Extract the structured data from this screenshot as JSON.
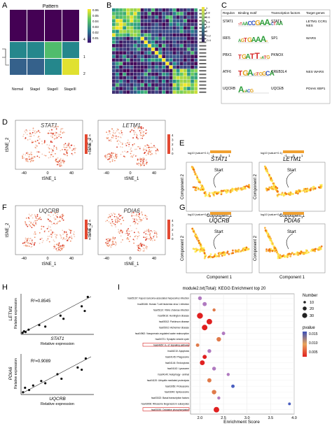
{
  "panels": {
    "A": {
      "letter": "A",
      "title": "Pattern",
      "columns": [
        "Normal",
        "StageI",
        "StageII",
        "StageIII"
      ],
      "row_labels": [
        "4",
        "1",
        "2"
      ],
      "colorbar_ticks": [
        "0.06",
        "0.05",
        "0.04",
        "0.03",
        "0.02",
        "0.01"
      ],
      "values": [
        [
          0.0,
          0.0,
          0.0,
          0.0
        ],
        [
          0.03,
          0.03,
          0.045,
          0.03
        ],
        [
          0.02,
          0.02,
          0.03,
          0.062
        ]
      ]
    },
    "B": {
      "letter": "B",
      "colorbar_ticks": [
        "1",
        "0.8",
        "0.6",
        "0.4",
        "0.2",
        "0",
        "-0.2",
        "-0.4"
      ]
    },
    "C": {
      "letter": "C",
      "headers": [
        "Regulon",
        "Binding motif",
        "Transcription factors",
        "Target genes"
      ],
      "rows": [
        {
          "regulon": "STAT1",
          "motif": "TTAACCGAAACTAA",
          "tf": "STAT1",
          "targets": "LETM1 CCR1\nNES"
        },
        {
          "regulon": "IRF5",
          "motif": "AGTGAAAG",
          "tf": "SP1",
          "targets": "WARS"
        },
        {
          "regulon": "PBX1",
          "motif": "TGATTGATG",
          "tf": "PKNOX",
          "targets": ""
        },
        {
          "regulon": "ATF6",
          "motif": "TGACGTGGCA",
          "tf": "CREB3L4",
          "targets": "NES WARS"
        },
        {
          "regulon": "UQCRB",
          "motif": "AGACG",
          "tf": "UQCEB",
          "targets": "PDIA6 XBP1"
        }
      ]
    },
    "D": {
      "letter": "D",
      "gene1": "STAT1",
      "gene2": "LETM1",
      "xlabel": "tSNE_1",
      "ylabel": "tSNE_2",
      "ticks": [
        "-40",
        "0",
        "40"
      ],
      "bar_ticks": [
        "4",
        "3",
        "2",
        "1",
        "0"
      ]
    },
    "E": {
      "letter": "E",
      "gene1": "STAT1",
      "gene2": "LETM1",
      "xlabel": "Component 1",
      "ylabel": "Component 2",
      "legend": "log10 (value+0.1)",
      "legend_ticks": [
        "-1",
        "0",
        "1"
      ],
      "start": "Start"
    },
    "F": {
      "letter": "F",
      "gene1": "UQCRB",
      "gene2": "PDIA6",
      "xlabel": "tSNE_1",
      "ylabel": "tSNE_2",
      "ticks": [
        "-40",
        "0",
        "40"
      ],
      "bar_ticks": [
        "4",
        "3",
        "2",
        "1",
        "0"
      ]
    },
    "G": {
      "letter": "G",
      "gene1": "UQCRB",
      "gene2": "PDIA6",
      "xlabel": "Component 1",
      "ylabel": "Component 2",
      "legend": "log10 (value+0.1)",
      "legend_ticks": [
        "-1",
        "0",
        "1"
      ],
      "start": "Start"
    },
    "H": {
      "letter": "H",
      "top": {
        "ylabel": "LETM1",
        "ysub": "Relative expression",
        "xlabel": "STAT1",
        "xsub": "Relative expression",
        "r2": "R²=0.8545"
      },
      "bottom": {
        "ylabel": "PDIA6",
        "ysub": "Relative expression",
        "xlabel": "UQCRB",
        "xsub": "Relative expression",
        "r2": "R²=0.9089"
      }
    },
    "I": {
      "letter": "I",
      "title": "module2.txt(Total): KEGG Enrichment top 20",
      "xlabel": "Enrichment Score",
      "x_ticks": [
        "2.0",
        "2.5",
        "3.0",
        "3.5",
        "4.0"
      ],
      "size_legend_title": "Number",
      "size_legend": [
        "10",
        "20",
        "30"
      ],
      "color_legend_title": "pvalue",
      "color_legend": [
        "0.015",
        "0.010",
        "0.005"
      ]
    }
  },
  "chart_data": [
    {
      "type": "scatter",
      "title": "",
      "xlabel": "STAT1 Relative expression",
      "ylabel": "LETM1 Relative expression",
      "annotation": "R²=0.8545",
      "x": [
        0.5,
        1.0,
        1.5,
        2.5,
        6.0,
        8.0,
        13.0,
        14.0,
        20.0,
        21.0,
        22.0
      ],
      "y": [
        1.0,
        2.0,
        1.5,
        3.0,
        6.0,
        5.0,
        12.0,
        10.0,
        18.0,
        15.0,
        24.0
      ]
    },
    {
      "type": "scatter",
      "title": "",
      "xlabel": "UQCRB Relative expression",
      "ylabel": "PDIA6 Relative expression",
      "annotation": "R²=0.9089",
      "x": [
        0.5,
        1.0,
        2.0,
        3.0,
        5.0,
        6.0,
        9.0,
        10.0,
        14.0,
        15.0,
        16.0
      ],
      "y": [
        1.0,
        3.0,
        2.0,
        4.0,
        6.0,
        5.0,
        9.0,
        7.0,
        12.0,
        11.0,
        16.0
      ]
    },
    {
      "type": "scatter",
      "title": "module2.txt(Total): KEGG Enrichment top 20",
      "xlabel": "Enrichment Score",
      "xlim": [
        1.8,
        4.0
      ],
      "categories": [
        "hsa05167: Kaposi sarcoma-associated herpesvirus infection",
        "hsa05166: Human T-cell leukemia virus 1 infection",
        "hsa05110: Vibrio cholerae infection",
        "hsa05016: Huntington disease",
        "hsa05012: Parkinson disease",
        "hsa05010: Alzheimer disease",
        "hsa04962: Vasopressin-regulated water reabsorption",
        "hsa04721: Synaptic vesicle cycle",
        "hsa04657: IL-17 signaling pathway",
        "hsa04210: Apoptosis",
        "hsa04145: Phagosome",
        "hsa04144: Endocytosis",
        "hsa04142: Lysosome",
        "hsa04140: Autophagy - animal",
        "hsa04120: Ubiquitin mediated proteolysis",
        "hsa03050: Proteasome",
        "hsa03040: Spliceosome",
        "hsa03022: Basal transcription factors",
        "hsa03008: Ribosome biogenesis in eukaryotes",
        "hsa00190: Oxidative phosphorylation"
      ],
      "x": [
        2.0,
        2.1,
        2.3,
        2.0,
        2.2,
        2.1,
        2.5,
        2.4,
        1.95,
        2.2,
        2.1,
        2.05,
        2.3,
        2.6,
        2.2,
        2.7,
        2.3,
        2.4,
        3.9,
        2.35
      ],
      "number": [
        12,
        14,
        8,
        24,
        22,
        22,
        10,
        16,
        10,
        12,
        14,
        18,
        12,
        8,
        14,
        10,
        16,
        8,
        6,
        22
      ],
      "pvalue": [
        0.013,
        0.012,
        0.01,
        0.006,
        0.004,
        0.005,
        0.012,
        0.008,
        0.01,
        0.013,
        0.007,
        0.003,
        0.012,
        0.013,
        0.009,
        0.015,
        0.011,
        0.012,
        0.014,
        0.003
      ]
    }
  ]
}
